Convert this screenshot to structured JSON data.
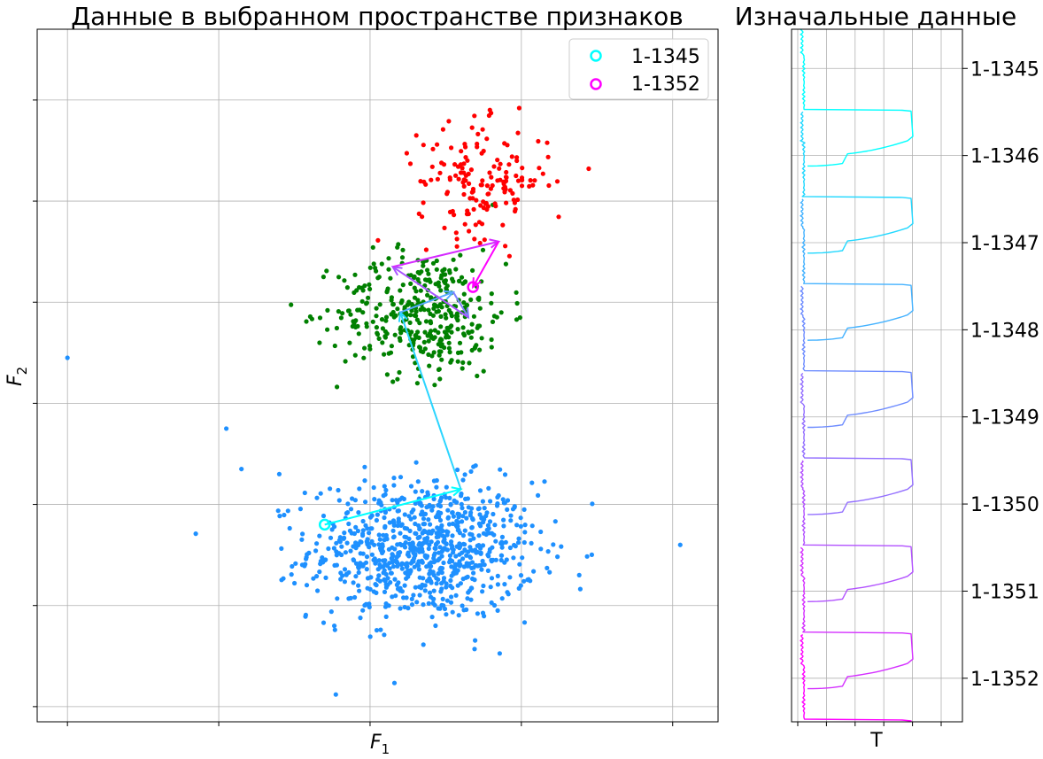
{
  "chart_data": [
    {
      "type": "scatter",
      "title": "Данные в выбранном пространстве признаков",
      "xlabel": "F",
      "xlabel_sub": "1",
      "ylabel": "F",
      "ylabel_sub": "2",
      "xlim": [
        -0.2,
        4.3
      ],
      "ylim": [
        -0.15,
        6.7
      ],
      "grid": true,
      "tick_labels_shown": false,
      "legend": {
        "placement": "top-right",
        "entries": [
          {
            "label": "1-1345",
            "color": "#00ffff",
            "marker": "open-circle"
          },
          {
            "label": "1-1352",
            "color": "#ff00ff",
            "marker": "open-circle"
          }
        ]
      },
      "clusters": [
        {
          "color": "#1e90ff",
          "n": 850,
          "center": [
            2.35,
            1.55
          ],
          "spread": [
            0.6,
            0.55
          ]
        },
        {
          "color": "#008000",
          "n": 380,
          "center": [
            2.35,
            3.9
          ],
          "spread": [
            0.45,
            0.5
          ]
        },
        {
          "color": "#ff0000",
          "n": 160,
          "center": [
            2.75,
            5.2
          ],
          "spread": [
            0.35,
            0.45
          ]
        }
      ],
      "outliers": [
        {
          "x": 0.0,
          "y": 3.45,
          "color": "#1e90ff"
        },
        {
          "x": 1.05,
          "y": 2.75,
          "color": "#1e90ff"
        },
        {
          "x": 1.15,
          "y": 2.35,
          "color": "#1e90ff"
        },
        {
          "x": 4.05,
          "y": 1.6,
          "color": "#1e90ff"
        },
        {
          "x": 1.4,
          "y": 2.3,
          "color": "#1e90ff"
        }
      ],
      "trajectory": {
        "colors": [
          "#00ffff",
          "#ff00ff"
        ],
        "points": [
          [
            1.7,
            1.8
          ],
          [
            2.6,
            2.15
          ],
          [
            2.2,
            3.9
          ],
          [
            2.55,
            4.1
          ],
          [
            2.65,
            3.85
          ],
          [
            2.15,
            4.35
          ],
          [
            2.85,
            4.6
          ],
          [
            2.68,
            4.15
          ]
        ],
        "start_marker": [
          1.7,
          1.8
        ],
        "end_marker": [
          2.68,
          4.15
        ]
      }
    },
    {
      "type": "line",
      "title": "Изначальные данные",
      "xlabel": "T",
      "ylim": [
        -1352.5,
        -1344.55
      ],
      "grid": true,
      "ytick_position": "right",
      "ytick_labels": [
        "1-1345",
        "1-1346",
        "1-1347",
        "1-1348",
        "1-1349",
        "1-1350",
        "1-1351",
        "1-1352"
      ],
      "ytick_values": [
        1345,
        1346,
        1347,
        1348,
        1349,
        1350,
        1351,
        1352
      ],
      "series": [
        {
          "id": 1345,
          "color": "#00ffff"
        },
        {
          "id": 1346,
          "color": "#22d8ff"
        },
        {
          "id": 1347,
          "color": "#44b2ff"
        },
        {
          "id": 1348,
          "color": "#6e8cff"
        },
        {
          "id": 1349,
          "color": "#9470ff"
        },
        {
          "id": 1350,
          "color": "#b252ff"
        },
        {
          "id": 1351,
          "color": "#d430ff"
        },
        {
          "id": 1352,
          "color": "#ff00ff"
        }
      ]
    }
  ]
}
